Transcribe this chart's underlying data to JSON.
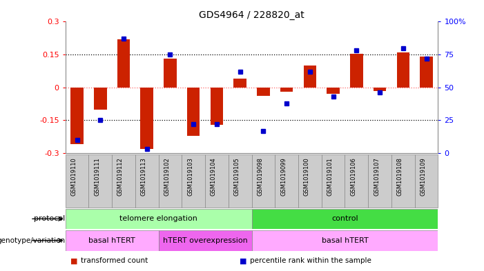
{
  "title": "GDS4964 / 228820_at",
  "samples": [
    "GSM1019110",
    "GSM1019111",
    "GSM1019112",
    "GSM1019113",
    "GSM1019102",
    "GSM1019103",
    "GSM1019104",
    "GSM1019105",
    "GSM1019098",
    "GSM1019099",
    "GSM1019100",
    "GSM1019101",
    "GSM1019106",
    "GSM1019107",
    "GSM1019108",
    "GSM1019109"
  ],
  "transformed_count": [
    -0.26,
    -0.1,
    0.22,
    -0.28,
    0.13,
    -0.22,
    -0.17,
    0.04,
    -0.04,
    -0.02,
    0.1,
    -0.03,
    0.155,
    -0.015,
    0.16,
    0.14
  ],
  "percentile_rank": [
    10,
    25,
    87,
    3,
    75,
    22,
    22,
    62,
    17,
    38,
    62,
    43,
    78,
    46,
    80,
    72
  ],
  "ylim_left": [
    -0.3,
    0.3
  ],
  "ylim_right": [
    0,
    100
  ],
  "yticks_left": [
    -0.3,
    -0.15,
    0,
    0.15,
    0.3
  ],
  "yticks_right": [
    0,
    25,
    50,
    75,
    100
  ],
  "bar_color": "#cc2200",
  "dot_color": "#0000cc",
  "hline_y": [
    -0.15,
    0.0,
    0.15
  ],
  "hline_colors": [
    "black",
    "#ff6666",
    "black"
  ],
  "protocol_groups": [
    {
      "label": "telomere elongation",
      "start": 0,
      "end": 8,
      "color": "#aaffaa"
    },
    {
      "label": "control",
      "start": 8,
      "end": 16,
      "color": "#44dd44"
    }
  ],
  "genotype_groups": [
    {
      "label": "basal hTERT",
      "start": 0,
      "end": 4,
      "color": "#ffaaff"
    },
    {
      "label": "hTERT overexpression",
      "start": 4,
      "end": 8,
      "color": "#ee66ee"
    },
    {
      "label": "basal hTERT",
      "start": 8,
      "end": 16,
      "color": "#ffaaff"
    }
  ],
  "legend_items": [
    {
      "label": "transformed count",
      "color": "#cc2200"
    },
    {
      "label": "percentile rank within the sample",
      "color": "#0000cc"
    }
  ],
  "bar_width": 0.55,
  "sample_box_color": "#cccccc",
  "sample_box_edge": "#888888"
}
